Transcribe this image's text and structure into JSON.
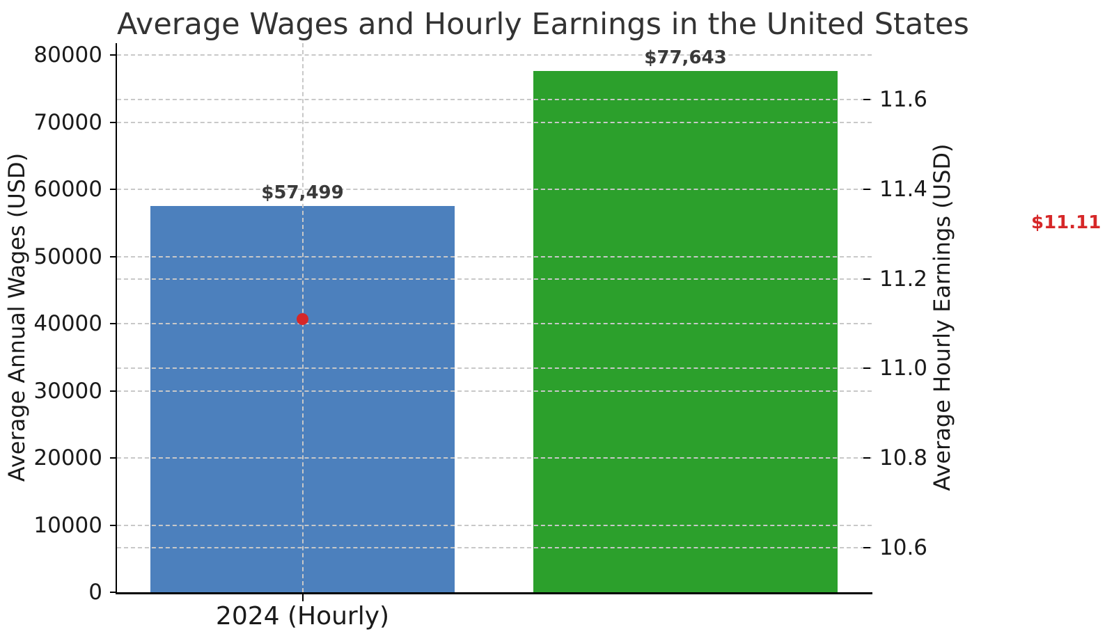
{
  "chart_data": {
    "type": "bar",
    "title": "Average Wages and Hourly Earnings in the United States",
    "grid": true,
    "legend": null,
    "x_ticks": [
      {
        "bar_index": 0,
        "label": "2024 (Hourly)"
      }
    ],
    "bars": [
      {
        "x_index": 0,
        "value": 57499,
        "label": "$57,499",
        "color": "#4c80bd"
      },
      {
        "x_index": 1,
        "value": 77643,
        "label": "$77,643",
        "color": "#2ca02c"
      }
    ],
    "left_axis": {
      "label": "Average Annual Wages (USD)",
      "range": [
        0,
        80000
      ],
      "ticks": [
        {
          "v": 0,
          "label": "0"
        },
        {
          "v": 10000,
          "label": "10000"
        },
        {
          "v": 20000,
          "label": "20000"
        },
        {
          "v": 30000,
          "label": "30000"
        },
        {
          "v": 40000,
          "label": "40000"
        },
        {
          "v": 50000,
          "label": "50000"
        },
        {
          "v": 60000,
          "label": "60000"
        },
        {
          "v": 70000,
          "label": "70000"
        },
        {
          "v": 80000,
          "label": "80000"
        }
      ]
    },
    "right_axis": {
      "label": "Average Hourly Earnings (USD)",
      "range": [
        10.5,
        11.7
      ],
      "ticks": [
        {
          "v": 10.6,
          "label": "10.6"
        },
        {
          "v": 10.8,
          "label": "10.8"
        },
        {
          "v": 11.0,
          "label": "11.0"
        },
        {
          "v": 11.2,
          "label": "11.2"
        },
        {
          "v": 11.4,
          "label": "11.4"
        },
        {
          "v": 11.6,
          "label": "11.6"
        }
      ]
    },
    "point": {
      "x_index": 0,
      "value": 11.11,
      "axis": "right",
      "color": "#d62728"
    },
    "annotation": {
      "text": "$11.11",
      "color": "#d62728"
    },
    "colors": {
      "grid": "#c8c8c8",
      "spine": "#000000",
      "title_text": "#333333",
      "bar_label_text": "#3a3a3a",
      "tick_text": "#1a1a1a"
    }
  }
}
